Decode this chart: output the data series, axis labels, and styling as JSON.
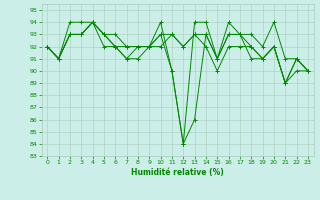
{
  "xlabel": "Humidité relative (%)",
  "bg_color": "#cceee8",
  "grid_color": "#aaccbb",
  "line_color": "#008800",
  "marker": "+",
  "xlim_min": -0.5,
  "xlim_max": 23.5,
  "ylim_min": 83,
  "ylim_max": 95.5,
  "yticks": [
    83,
    84,
    85,
    86,
    87,
    88,
    89,
    90,
    91,
    92,
    93,
    94,
    95
  ],
  "xticks": [
    0,
    1,
    2,
    3,
    4,
    5,
    6,
    7,
    8,
    9,
    10,
    11,
    12,
    13,
    14,
    15,
    16,
    17,
    18,
    19,
    20,
    21,
    22,
    23
  ],
  "lines": [
    [
      92,
      91,
      94,
      94,
      94,
      93,
      93,
      92,
      92,
      92,
      94,
      90,
      84,
      94,
      94,
      91,
      94,
      93,
      93,
      92,
      94,
      91,
      91,
      90
    ],
    [
      92,
      91,
      93,
      93,
      94,
      93,
      92,
      91,
      92,
      92,
      93,
      90,
      84,
      86,
      93,
      91,
      93,
      93,
      92,
      91,
      92,
      89,
      91,
      90
    ],
    [
      92,
      91,
      93,
      93,
      94,
      93,
      92,
      92,
      92,
      92,
      93,
      93,
      92,
      93,
      93,
      91,
      93,
      93,
      91,
      91,
      92,
      89,
      91,
      90
    ],
    [
      92,
      91,
      93,
      93,
      94,
      92,
      92,
      91,
      91,
      92,
      92,
      93,
      92,
      93,
      92,
      90,
      92,
      92,
      92,
      91,
      92,
      89,
      90,
      90
    ]
  ],
  "xlabel_fontsize": 5.5,
  "tick_fontsize": 4.5,
  "linewidth": 0.7,
  "markersize": 2.5,
  "markeredgewidth": 0.7
}
